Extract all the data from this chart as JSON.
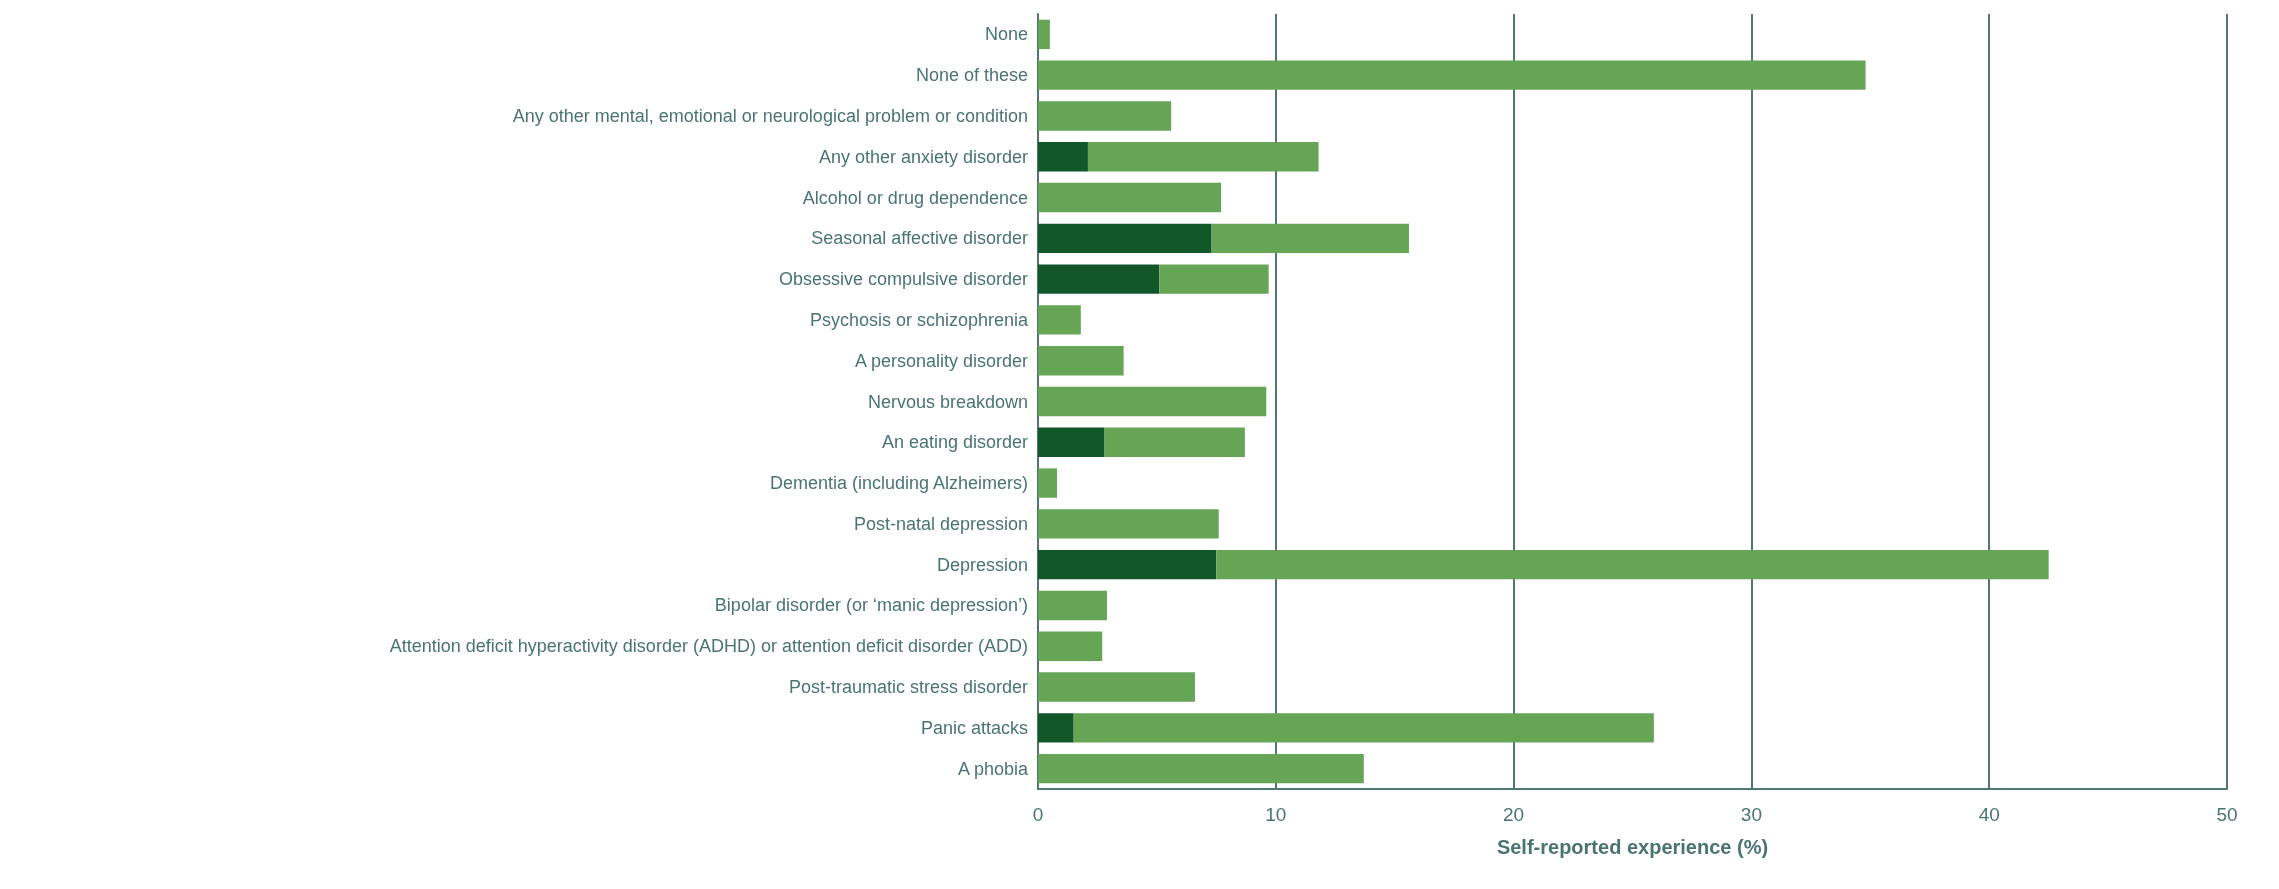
{
  "chart_data": {
    "type": "bar",
    "orientation": "horizontal",
    "stacked": true,
    "xlabel": "Self-reported experience (%)",
    "categories": [
      "None",
      "None of these",
      "Any other mental, emotional or neurological problem or condition",
      "Any other anxiety disorder",
      "Alcohol or drug dependence",
      "Seasonal affective disorder",
      "Obsessive compulsive disorder",
      "Psychosis or schizophrenia",
      "A personality disorder",
      "Nervous breakdown",
      "An eating disorder",
      "Dementia (including Alzheimers)",
      "Post-natal depression",
      "Depression",
      "Bipolar disorder (or ‘manic depression’)",
      "Attention deficit hyperactivity disorder (ADHD) or attention deficit disorder (ADD)",
      "Post-traumatic stress disorder",
      "Panic attacks",
      "A phobia"
    ],
    "series": [
      {
        "color": "#12572a",
        "values": [
          null,
          null,
          null,
          2.1,
          null,
          7.3,
          5.1,
          null,
          null,
          null,
          2.8,
          null,
          null,
          7.5,
          null,
          null,
          null,
          1.5,
          null
        ]
      },
      {
        "color": "#66a555",
        "values": [
          0.5,
          34.8,
          5.6,
          9.7,
          7.7,
          8.3,
          4.6,
          1.8,
          3.6,
          9.6,
          5.9,
          0.8,
          7.6,
          35.0,
          2.9,
          2.7,
          6.6,
          24.4,
          13.7
        ]
      }
    ],
    "xlim": [
      0,
      50
    ],
    "xticks": [
      0,
      10,
      20,
      30,
      40,
      50
    ],
    "grid": "x"
  }
}
